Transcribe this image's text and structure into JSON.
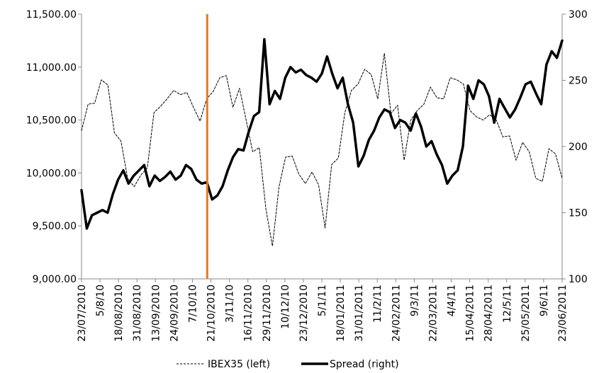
{
  "chart_data": {
    "type": "line",
    "title": "",
    "xlabel": "",
    "left_axis": {
      "range": [
        9000,
        11500
      ],
      "ticks": [
        "9,000.00",
        "9,500.00",
        "10,000.00",
        "10,500.00",
        "11,000.00",
        "11,500.00"
      ]
    },
    "right_axis": {
      "range": [
        100,
        300
      ],
      "ticks": [
        "100",
        "150",
        "200",
        "250",
        "300"
      ]
    },
    "x_tick_labels": [
      "23/07/2010",
      "5/8/10",
      "18/08/2010",
      "31/08/2010",
      "13/09/2010",
      "24/09/2010",
      "7/10/10",
      "21/10/2010",
      "3/11/10",
      "16/11/2010",
      "29/11/2010",
      "10/12/10",
      "23/12/2010",
      "5/1/11",
      "18/01/2011",
      "31/01/2011",
      "11/2/11",
      "24/02/2011",
      "9/3/11",
      "22/03/2011",
      "4/4/11",
      "15/04/2011",
      "28/04/2011",
      "12/5/11",
      "25/05/2011",
      "9/6/11",
      "23/06/2011"
    ],
    "event_marker": {
      "category_index": 6.8,
      "color": "#E07B24"
    },
    "grid": false,
    "legend_position": "bottom",
    "series": [
      {
        "name": "IBEX35 (left)",
        "axis": "left",
        "style": "dashed",
        "color": "#000000",
        "values": [
          10400,
          10650,
          10660,
          10880,
          10830,
          10380,
          10300,
          9950,
          9870,
          9980,
          10050,
          10570,
          10630,
          10700,
          10780,
          10740,
          10760,
          10620,
          10490,
          10700,
          10770,
          10900,
          10920,
          10620,
          10800,
          10500,
          10200,
          10240,
          9660,
          9310,
          9870,
          10150,
          10160,
          9990,
          9900,
          10010,
          9890,
          9480,
          10080,
          10140,
          10570,
          10780,
          10840,
          10980,
          10930,
          10700,
          11130,
          10560,
          10640,
          10120,
          10500,
          10590,
          10650,
          10810,
          10710,
          10700,
          10900,
          10880,
          10840,
          10590,
          10530,
          10500,
          10550,
          10500,
          10340,
          10350,
          10120,
          10290,
          10200,
          9950,
          9920,
          10230,
          10180,
          9950
        ]
      },
      {
        "name": "Spread (right)",
        "axis": "right",
        "style": "solid",
        "color": "#000000",
        "values": [
          167,
          138,
          148,
          150,
          152,
          150,
          164,
          175,
          182,
          172,
          178,
          182,
          186,
          170,
          178,
          174,
          177,
          181,
          175,
          178,
          186,
          183,
          175,
          172,
          173,
          160,
          163,
          170,
          182,
          192,
          198,
          197,
          211,
          223,
          226,
          281,
          232,
          242,
          236,
          252,
          260,
          256,
          258,
          254,
          252,
          249,
          255,
          268,
          255,
          244,
          252,
          232,
          218,
          185,
          193,
          205,
          212,
          222,
          228,
          226,
          214,
          220,
          218,
          212,
          225,
          215,
          200,
          204,
          194,
          186,
          172,
          178,
          182,
          200,
          246,
          236,
          250,
          247,
          238,
          218,
          236,
          229,
          222,
          228,
          237,
          247,
          249,
          240,
          232,
          262,
          272,
          267,
          280
        ]
      }
    ]
  }
}
